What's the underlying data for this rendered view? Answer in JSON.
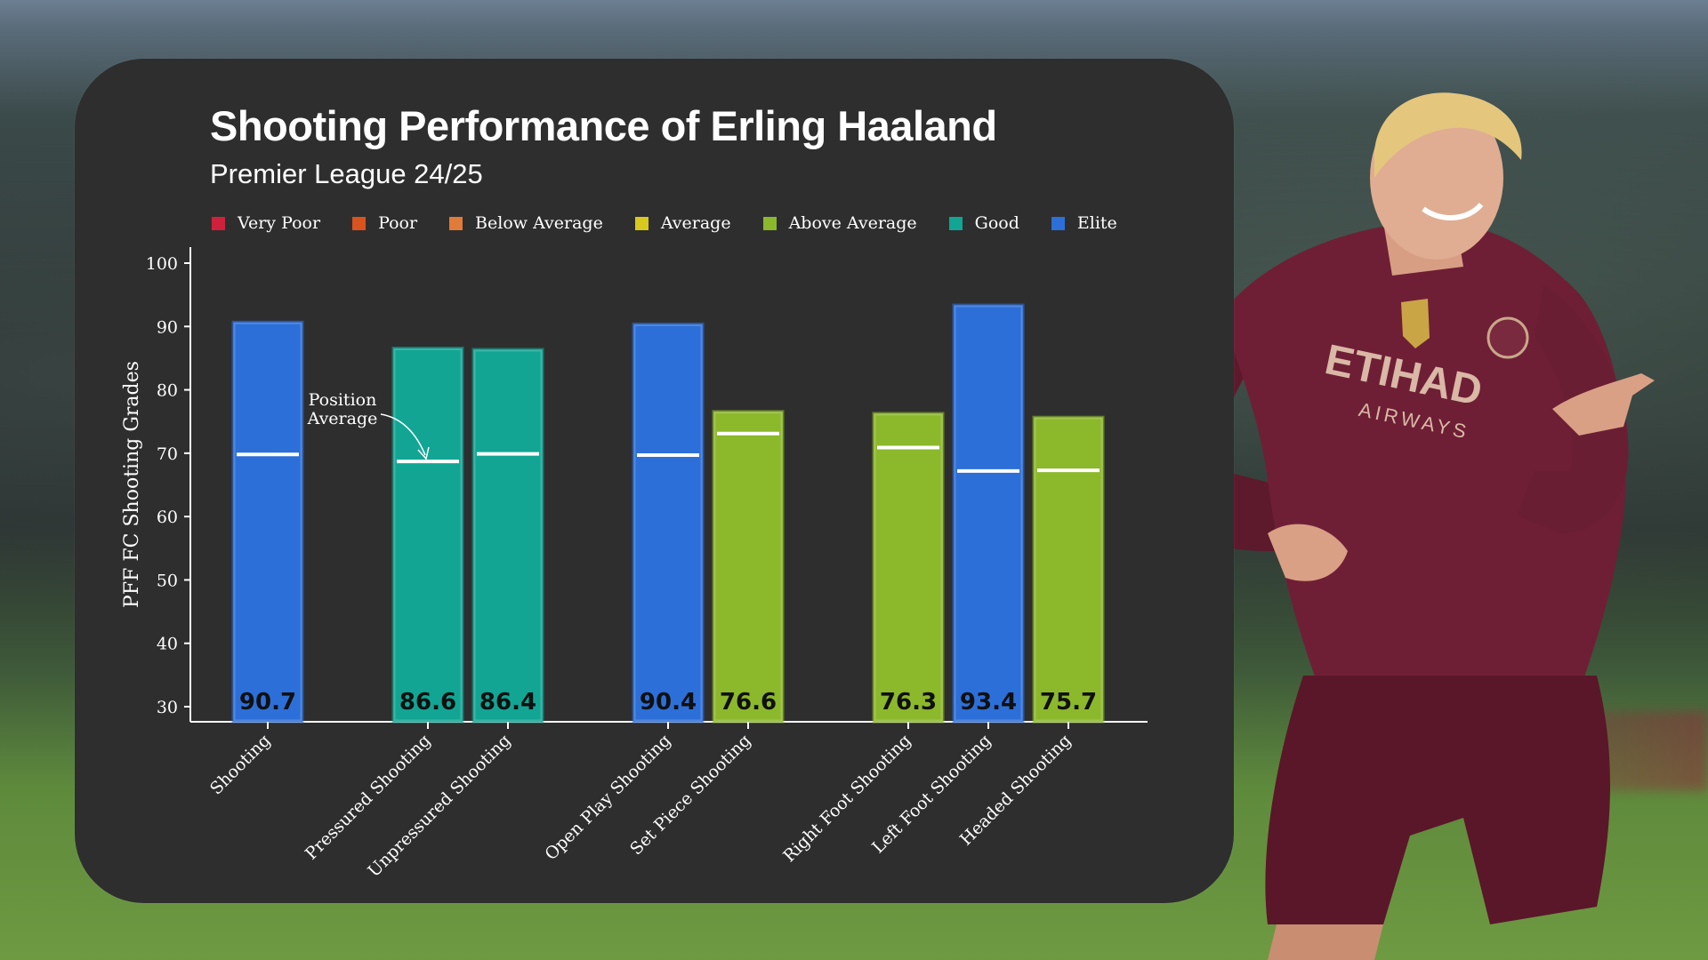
{
  "chart_data": {
    "type": "bar",
    "title": "Shooting Performance of Erling Haaland",
    "subtitle": "Premier League 24/25",
    "ylabel": "PFF FC Shooting Grades",
    "ylim": [
      30,
      100
    ],
    "yticks": [
      100,
      90,
      80,
      70,
      60,
      50,
      40,
      30
    ],
    "legend": [
      {
        "label": "Very Poor",
        "color": "#d0213c"
      },
      {
        "label": "Poor",
        "color": "#d9531e"
      },
      {
        "label": "Below Average",
        "color": "#e07b39"
      },
      {
        "label": "Average",
        "color": "#d7c91e"
      },
      {
        "label": "Above Average",
        "color": "#8cb82c"
      },
      {
        "label": "Good",
        "color": "#12a594"
      },
      {
        "label": "Elite",
        "color": "#2d6fd8"
      }
    ],
    "bars": [
      {
        "category": "Shooting",
        "value": 90.7,
        "value_label": "90.7",
        "position_average": 69.8,
        "rating": "Elite",
        "color": "#2d6fd8",
        "group": 0
      },
      {
        "category": "Pressured Shooting",
        "value": 86.6,
        "value_label": "86.6",
        "position_average": 68.7,
        "rating": "Good",
        "color": "#12a594",
        "group": 1
      },
      {
        "category": "Unpressured Shooting",
        "value": 86.4,
        "value_label": "86.4",
        "position_average": 69.9,
        "rating": "Good",
        "color": "#12a594",
        "group": 1
      },
      {
        "category": "Open Play Shooting",
        "value": 90.4,
        "value_label": "90.4",
        "position_average": 69.7,
        "rating": "Elite",
        "color": "#2d6fd8",
        "group": 2
      },
      {
        "category": "Set Piece Shooting",
        "value": 76.6,
        "value_label": "76.6",
        "position_average": 73.1,
        "rating": "Above Average",
        "color": "#8cb82c",
        "group": 2
      },
      {
        "category": "Right Foot Shooting",
        "value": 76.3,
        "value_label": "76.3",
        "position_average": 70.9,
        "rating": "Above Average",
        "color": "#8cb82c",
        "group": 3
      },
      {
        "category": "Left Foot Shooting",
        "value": 93.4,
        "value_label": "93.4",
        "position_average": 67.2,
        "rating": "Elite",
        "color": "#2d6fd8",
        "group": 3
      },
      {
        "category": "Headed Shooting",
        "value": 75.7,
        "value_label": "75.7",
        "position_average": 67.3,
        "rating": "Above Average",
        "color": "#8cb82c",
        "group": 3
      }
    ],
    "annotation": {
      "line1": "Position",
      "line2": "Average"
    }
  },
  "colors": {
    "card_background": "#2e2e2e",
    "average_line": "#ffffff",
    "axis": "#ffffff",
    "jersey": "#6e1f35"
  },
  "player_image": {
    "icon": "player-photo"
  }
}
